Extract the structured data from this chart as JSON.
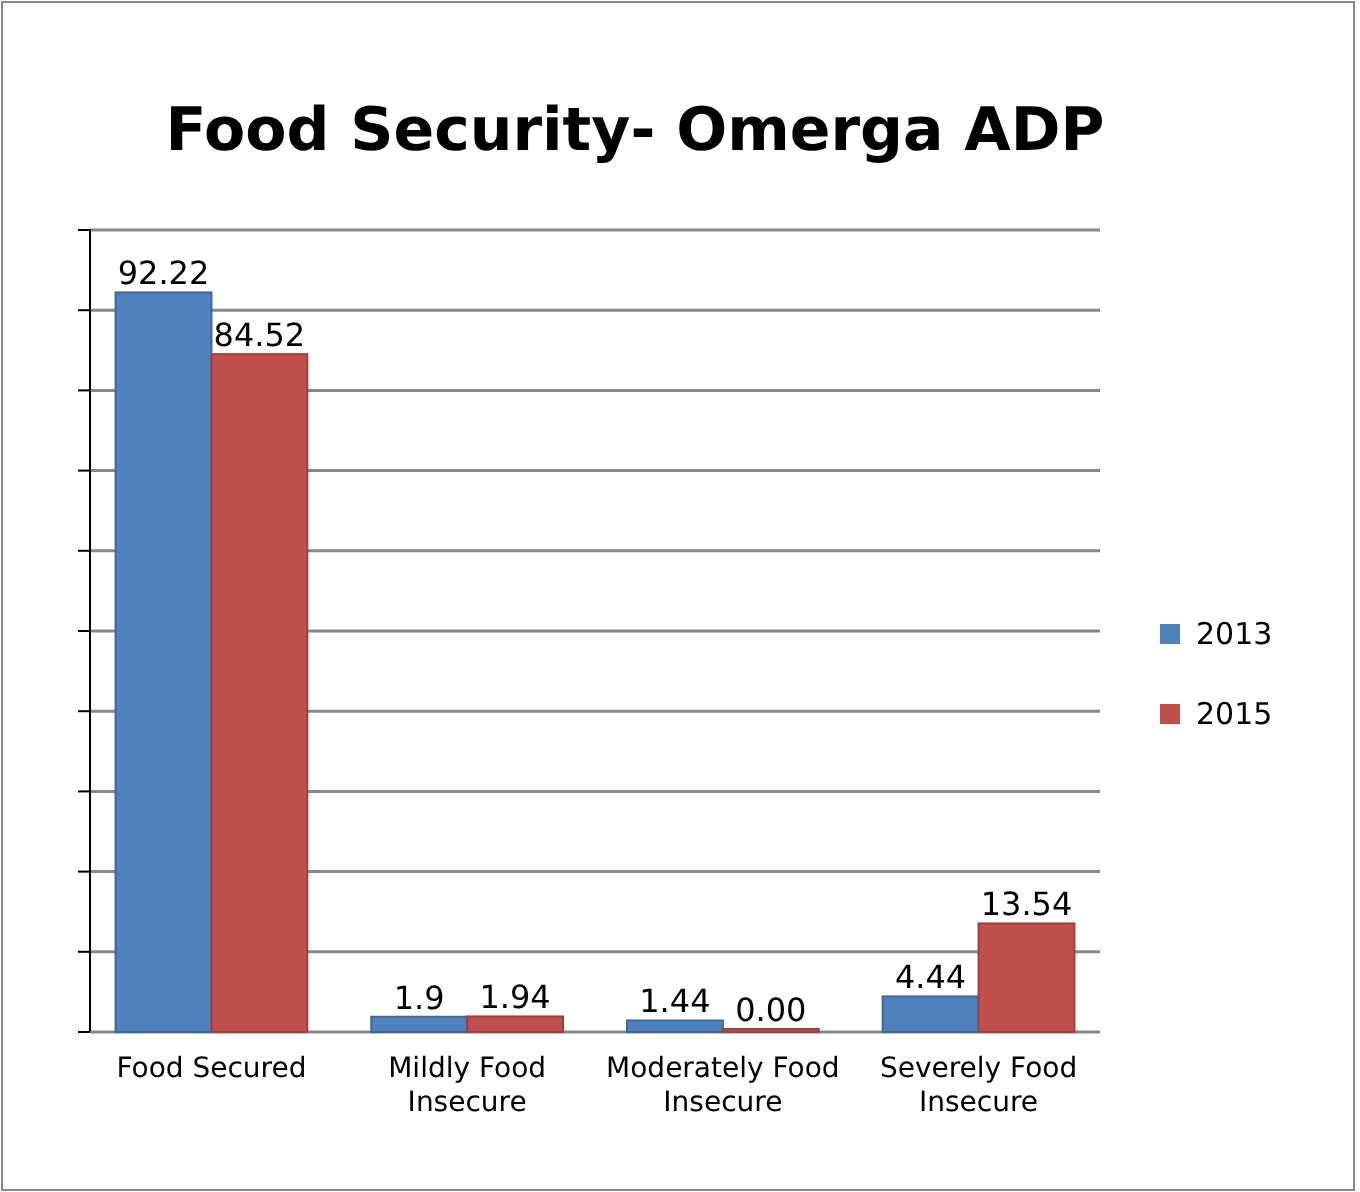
{
  "chart_data": {
    "type": "bar",
    "title": "Food Security- Omerga ADP",
    "categories": [
      "Food Secured",
      "Mildly Food Insecure",
      "Moderately Food Insecure",
      "Severely Food Insecure"
    ],
    "series": [
      {
        "name": "2013",
        "color": "#4f81bd",
        "values": [
          92.22,
          1.9,
          1.44,
          4.44
        ],
        "value_labels": [
          "92.22",
          "1.9",
          "1.44",
          "4.44"
        ]
      },
      {
        "name": "2015",
        "color": "#c0504d",
        "values": [
          84.52,
          1.94,
          0,
          13.54
        ],
        "value_labels": [
          "84.52",
          "1.94",
          "0.00",
          "13.54"
        ]
      }
    ],
    "ylim": [
      0,
      100
    ],
    "yticks": [
      {
        "value": 0,
        "label": null
      },
      {
        "value": 10,
        "label": null
      },
      {
        "value": 20,
        "label": null
      },
      {
        "value": 30,
        "label": null
      },
      {
        "value": 40,
        "label": null
      },
      {
        "value": 50,
        "label": null
      },
      {
        "value": 60,
        "label": null
      },
      {
        "value": 70,
        "label": null
      },
      {
        "value": 80,
        "label": null
      },
      {
        "value": 90,
        "label": null
      },
      {
        "value": 100,
        "label": null
      }
    ],
    "tick_labels": "x",
    "grid": "y",
    "legend": "right"
  }
}
